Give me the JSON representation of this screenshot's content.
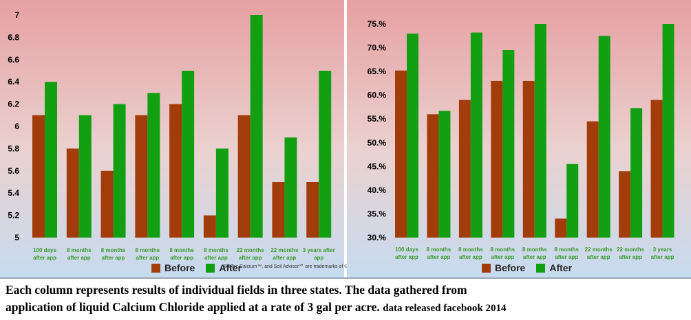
{
  "charts": [
    {
      "title": "",
      "legend": {
        "before": "Before",
        "after": "After"
      },
      "footnote": "BioTec Calcium™, and Soil Advisor℠ are trademarks of © BioTec Solutions®, LLC."
    },
    {
      "title": "",
      "legend": {
        "before": "Before",
        "after": "After"
      }
    }
  ],
  "caption": {
    "line1": "Each column represents results of individual fields in three states. The data gathered from",
    "line2": "application of liquid Calcium Chloride applied at a rate of 3 gal per acre.",
    "line2_small": "data released facebook 2014"
  },
  "colors": {
    "before": "#a33c0b",
    "after": "#12a012",
    "axis_text": "#000000",
    "category_text": "#3a9a2a"
  },
  "chart_data": [
    {
      "type": "bar",
      "categories": [
        [
          "100 days",
          "after app"
        ],
        [
          "8 months",
          "after app"
        ],
        [
          "8 months",
          "after app"
        ],
        [
          "8 months",
          "after app"
        ],
        [
          "8 months",
          "after app"
        ],
        [
          "8 months",
          "after app"
        ],
        [
          "22 months",
          "after app"
        ],
        [
          "22 months",
          "after app"
        ],
        [
          "3 years after",
          "app"
        ]
      ],
      "series": [
        {
          "name": "Before",
          "values": [
            6.1,
            5.8,
            5.6,
            6.1,
            6.2,
            5.2,
            6.1,
            5.5,
            5.5
          ]
        },
        {
          "name": "After",
          "values": [
            6.4,
            6.1,
            6.2,
            6.3,
            6.5,
            5.8,
            7.0,
            5.9,
            6.5
          ]
        }
      ],
      "ylim": [
        5,
        7
      ],
      "yticks": [
        5,
        5.2,
        5.4,
        5.6,
        5.8,
        6,
        6.2,
        6.4,
        6.6,
        6.8,
        7
      ],
      "ytick_labels": [
        "5",
        "5.2",
        "5.4",
        "5.6",
        "5.8",
        "6",
        "6.2",
        "6.4",
        "6.6",
        "6.8",
        "7"
      ],
      "grid": false,
      "legend": "bottom"
    },
    {
      "type": "bar",
      "categories": [
        [
          "100 days",
          "after app"
        ],
        [
          "8 months",
          "after app"
        ],
        [
          "8 months",
          "after app"
        ],
        [
          "8 months",
          "after app"
        ],
        [
          "8 months",
          "after app"
        ],
        [
          "8 months",
          "after app"
        ],
        [
          "22 months",
          "after app"
        ],
        [
          "22 months",
          "after app"
        ],
        [
          "3 years",
          "after app"
        ]
      ],
      "series": [
        {
          "name": "Before",
          "values": [
            65.2,
            56.0,
            59.0,
            63.0,
            63.0,
            34.0,
            54.5,
            44.0,
            59.0
          ]
        },
        {
          "name": "After",
          "values": [
            73.0,
            56.7,
            73.2,
            69.5,
            75.0,
            45.5,
            72.5,
            57.3,
            75.0
          ]
        }
      ],
      "ylim": [
        30,
        75
      ],
      "yticks": [
        30,
        35,
        40,
        45,
        50,
        55,
        60,
        65,
        70,
        75
      ],
      "ytick_labels": [
        "30.%",
        "35.%",
        "40.%",
        "45.%",
        "50.%",
        "55.%",
        "60.%",
        "65.%",
        "70.%",
        "75.%"
      ],
      "grid": false,
      "legend": "bottom"
    }
  ]
}
